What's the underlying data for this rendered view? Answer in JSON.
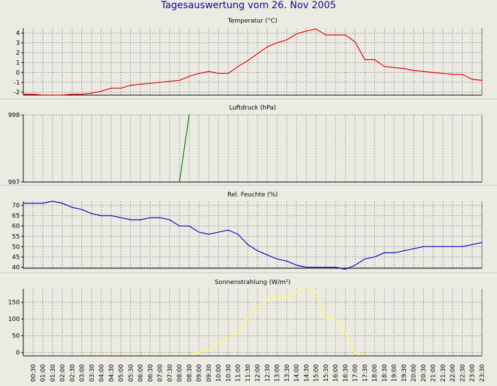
{
  "page": {
    "title": "Tagesauswertung vom 26. Nov 2005"
  },
  "x_labels": [
    "00:30",
    "01:00",
    "01:30",
    "02:00",
    "02:30",
    "03:00",
    "03:30",
    "04:00",
    "04:30",
    "05:00",
    "05:30",
    "06:00",
    "06:30",
    "07:00",
    "07:30",
    "08:00",
    "08:30",
    "09:00",
    "09:30",
    "10:00",
    "10:30",
    "11:00",
    "11:30",
    "12:00",
    "12:30",
    "13:00",
    "13:30",
    "14:00",
    "14:30",
    "15:00",
    "15:30",
    "16:00",
    "16:30",
    "17:00",
    "17:30",
    "18:00",
    "18:30",
    "19:00",
    "19:30",
    "20:00",
    "20:30",
    "21:00",
    "21:30",
    "22:00",
    "22:30",
    "23:00",
    "23:30"
  ],
  "chart_data": [
    {
      "type": "line",
      "title": "Temperatur (°C)",
      "ylim": [
        -2.3,
        4.5
      ],
      "yticks": [
        -2,
        -1,
        0,
        1,
        2,
        3,
        4
      ],
      "color": "#e00000",
      "grid": true,
      "x": [
        "00:00",
        "00:30",
        "01:00",
        "01:30",
        "02:00",
        "02:30",
        "03:00",
        "03:30",
        "04:00",
        "04:30",
        "05:00",
        "05:30",
        "06:00",
        "06:30",
        "07:00",
        "07:30",
        "08:00",
        "08:30",
        "09:00",
        "09:30",
        "10:00",
        "10:30",
        "11:00",
        "11:30",
        "12:00",
        "12:30",
        "13:00",
        "13:30",
        "14:00",
        "14:30",
        "15:00",
        "15:30",
        "16:00",
        "16:30",
        "17:00",
        "17:30",
        "18:00",
        "18:30",
        "19:00",
        "19:30",
        "20:00",
        "20:30",
        "21:00",
        "21:30",
        "22:00",
        "22:30",
        "23:00",
        "23:30"
      ],
      "values": [
        -2.2,
        -2.2,
        -2.3,
        -2.3,
        -2.3,
        -2.2,
        -2.2,
        -2.1,
        -1.9,
        -1.6,
        -1.6,
        -1.3,
        -1.2,
        -1.1,
        -1.0,
        -0.9,
        -0.8,
        -0.4,
        -0.1,
        0.1,
        -0.1,
        -0.1,
        0.6,
        1.2,
        1.9,
        2.6,
        3.0,
        3.3,
        3.9,
        4.2,
        4.4,
        3.8,
        3.8,
        3.8,
        3.1,
        1.3,
        1.3,
        0.6,
        0.5,
        0.4,
        0.2,
        0.1,
        0.0,
        -0.1,
        -0.2,
        -0.2,
        -0.7,
        -0.8
      ]
    },
    {
      "type": "line",
      "title": "Luftdruck (hPa)",
      "ylim": [
        997,
        998
      ],
      "yticks": [
        997,
        998
      ],
      "color": "#008000",
      "grid": true,
      "x": [
        "08:00",
        "08:30"
      ],
      "values": [
        997,
        998
      ]
    },
    {
      "type": "line",
      "title": "Rel. Feuchte (%)",
      "ylim": [
        39.5,
        72
      ],
      "yticks": [
        40,
        45,
        50,
        55,
        60,
        65,
        70
      ],
      "color": "#0000c0",
      "grid": true,
      "x": [
        "00:00",
        "00:30",
        "01:00",
        "01:30",
        "02:00",
        "02:30",
        "03:00",
        "03:30",
        "04:00",
        "04:30",
        "05:00",
        "05:30",
        "06:00",
        "06:30",
        "07:00",
        "07:30",
        "08:00",
        "08:30",
        "09:00",
        "09:30",
        "10:00",
        "10:30",
        "11:00",
        "11:30",
        "12:00",
        "12:30",
        "13:00",
        "13:30",
        "14:00",
        "14:30",
        "15:00",
        "15:30",
        "16:00",
        "16:30",
        "17:00",
        "17:30",
        "18:00",
        "18:30",
        "19:00",
        "19:30",
        "20:00",
        "20:30",
        "21:00",
        "21:30",
        "22:00",
        "22:30",
        "23:00",
        "23:30"
      ],
      "values": [
        71,
        71,
        71,
        72,
        71,
        69,
        68,
        66,
        65,
        65,
        64,
        63,
        63,
        64,
        64,
        63,
        60,
        60,
        57,
        56,
        57,
        58,
        56,
        51,
        48,
        46,
        44,
        43,
        41,
        40,
        40,
        40,
        40,
        39,
        41,
        44,
        45,
        47,
        47,
        48,
        49,
        50,
        50,
        50,
        50,
        50,
        51,
        52
      ]
    },
    {
      "type": "line",
      "title": "Sonnenstrahlung (W/m²)",
      "ylim": [
        -10,
        190
      ],
      "yticks": [
        0,
        50,
        100,
        150
      ],
      "color": "#ffff40",
      "grid": true,
      "x": [
        "03:00",
        "03:30",
        "04:00",
        "04:30",
        "05:00",
        "05:30",
        "06:00",
        "06:30",
        "07:00",
        "07:30",
        "08:00",
        "08:30",
        "09:00",
        "09:30",
        "10:00",
        "10:30",
        "11:00",
        "11:30",
        "12:00",
        "12:30",
        "13:00",
        "13:30",
        "14:00",
        "14:30",
        "15:00",
        "15:30",
        "16:00",
        "16:30",
        "17:00",
        "17:30"
      ],
      "values": [
        -3,
        -3,
        -3,
        -3,
        -3,
        -3,
        -3,
        -3,
        -3,
        -3,
        -3,
        -3,
        0,
        10,
        30,
        45,
        60,
        100,
        135,
        155,
        170,
        165,
        180,
        190,
        180,
        100,
        100,
        60,
        0,
        -5
      ]
    }
  ]
}
